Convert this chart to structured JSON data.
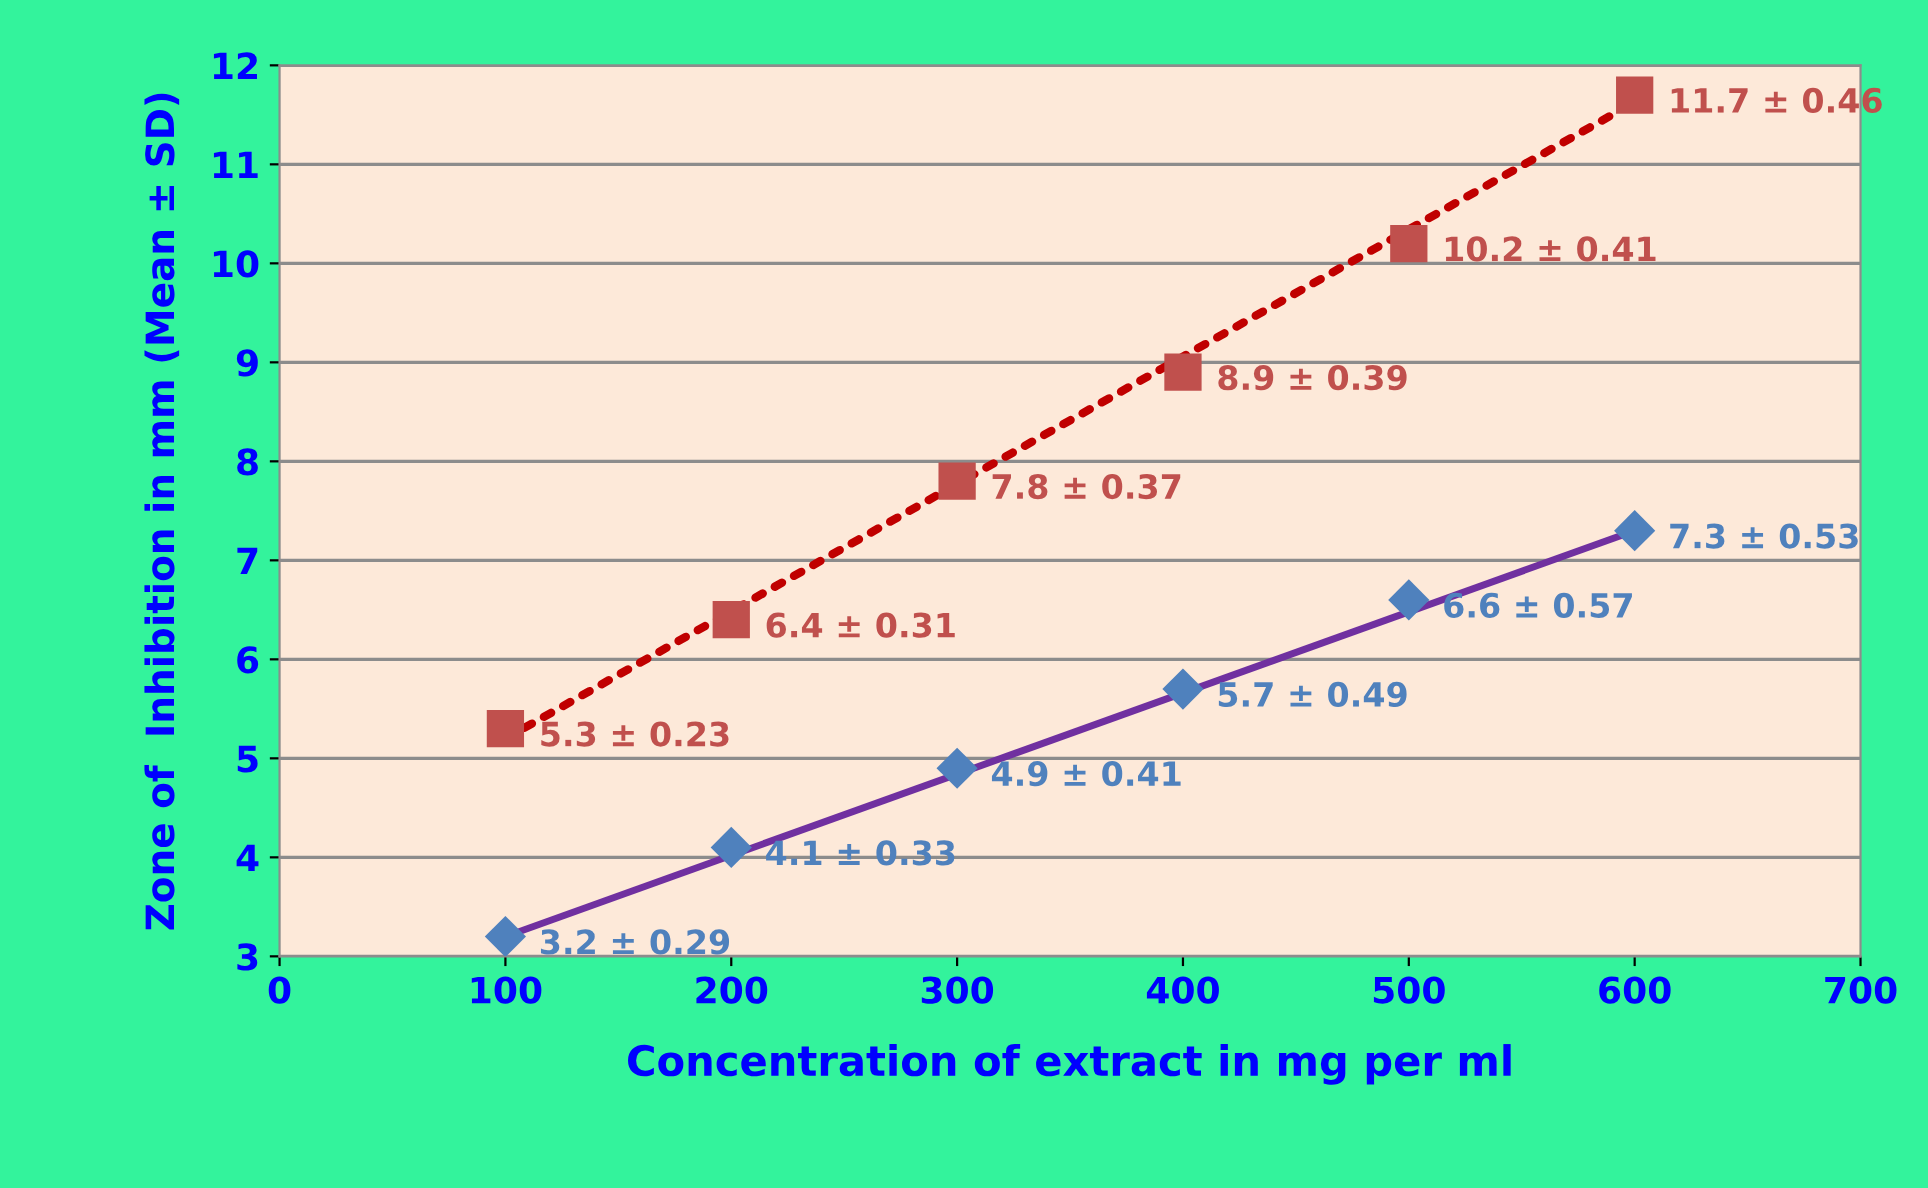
{
  "chart_data": {
    "type": "scatter",
    "xlabel": "Concentration of extract in mg per ml",
    "ylabel": "Zone of  Inhibition in mm (Mean ± SD)",
    "x": [
      100,
      200,
      300,
      400,
      500,
      600
    ],
    "series": [
      {
        "marker": "square",
        "color": "#c0504d",
        "values": [
          5.3,
          6.4,
          7.8,
          8.9,
          10.2,
          11.7
        ],
        "value_labels": [
          "5.3 ± 0.23",
          "6.4 ± 0.31",
          "7.8 ± 0.37",
          "8.9 ± 0.39",
          "10.2 ± 0.41",
          "11.7 ± 0.46"
        ]
      },
      {
        "marker": "diamond",
        "color": "#4f81bd",
        "values": [
          3.2,
          4.1,
          4.9,
          5.7,
          6.6,
          7.3
        ],
        "value_labels": [
          "3.2 ± 0.29",
          "4.1 ± 0.33",
          "4.9 ± 0.41",
          "5.7 ± 0.49",
          "6.6 ± 0.57",
          "7.3 ± 0.53"
        ]
      },
      {
        "type": "line",
        "line_style": "dotted",
        "color": "#c00000",
        "x": [
          100,
          590
        ],
        "values": [
          5.2,
          11.5
        ]
      },
      {
        "type": "line",
        "line_style": "solid",
        "color": "#7030a0",
        "x": [
          100,
          600
        ],
        "values": [
          3.2,
          7.3
        ]
      }
    ],
    "xlim": [
      0,
      700
    ],
    "xticks": [
      0,
      100,
      200,
      300,
      400,
      500,
      600,
      700
    ],
    "ylim": [
      3,
      12
    ],
    "yticks": [
      3,
      4,
      5,
      6,
      7,
      8,
      9,
      10,
      11,
      12
    ],
    "grid": "y"
  }
}
